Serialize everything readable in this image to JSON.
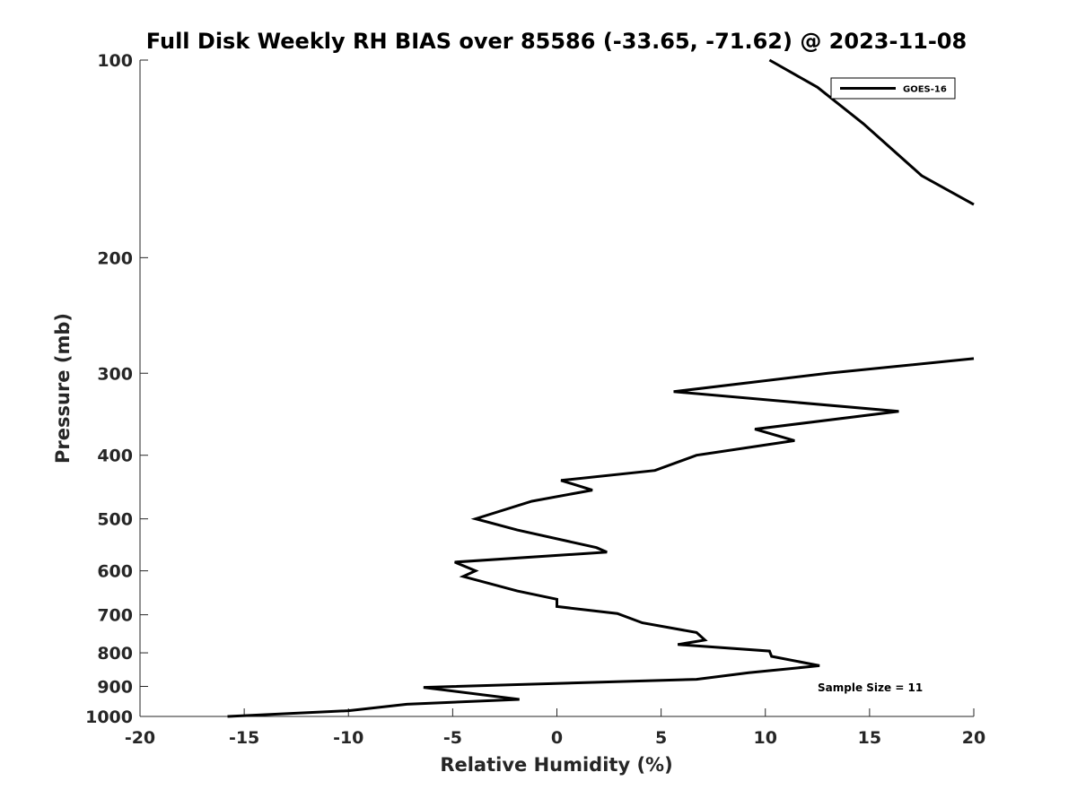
{
  "chart_data": {
    "type": "line",
    "title": "Full Disk Weekly RH BIAS over 85586 (-33.65, -71.62) @ 2023-11-08",
    "xlabel": "Relative Humidity (%)",
    "ylabel": "Pressure (mb)",
    "xlim": [
      -20,
      20
    ],
    "ylim": [
      100,
      1000
    ],
    "y_scale": "log",
    "y_reversed": true,
    "xticks": [
      -20,
      -15,
      -10,
      -5,
      0,
      5,
      10,
      15,
      20
    ],
    "xtick_labels": [
      "-20",
      "-15",
      "-10",
      "-5",
      "0",
      "5",
      "10",
      "15",
      "20"
    ],
    "yticks": [
      100,
      200,
      300,
      400,
      500,
      600,
      700,
      800,
      900,
      1000
    ],
    "ytick_labels": [
      "100",
      "200",
      "300",
      "400",
      "500",
      "600",
      "700",
      "800",
      "900",
      "1000"
    ],
    "grid": false,
    "legend_position": "top-right",
    "annotation": "Sample Size = 11",
    "series": [
      {
        "name": "GOES-16",
        "color": "#000000",
        "segments": [
          {
            "x": [
              10.2,
              12.5,
              14.7,
              17.5,
              20.0
            ],
            "y": [
              100,
              110,
              125,
              150,
              166
            ]
          },
          {
            "x": [
              20.0,
              13.0,
              5.6,
              16.4,
              9.5,
              11.4,
              6.7,
              4.7,
              0.2,
              1.7,
              -1.2,
              -3.9,
              -1.9,
              1.9,
              2.4,
              -4.9,
              -3.9,
              -4.5,
              -1.9,
              0.0,
              0.0,
              2.9,
              4.1,
              6.7,
              7.1,
              5.8,
              10.2,
              10.3,
              12.6,
              9.2,
              6.7,
              -6.4,
              -1.8,
              -7.2,
              -10.0,
              -15.8
            ],
            "y": [
              285,
              300,
              320,
              343,
              365,
              380,
              400,
              422,
              437,
              452,
              470,
              500,
              520,
              553,
              562,
              582,
              600,
              612,
              644,
              663,
              680,
              697,
              720,
              745,
              765,
              777,
              795,
              810,
              837,
              858,
              878,
              903,
              942,
              958,
              980,
              1000
            ]
          }
        ]
      }
    ]
  }
}
